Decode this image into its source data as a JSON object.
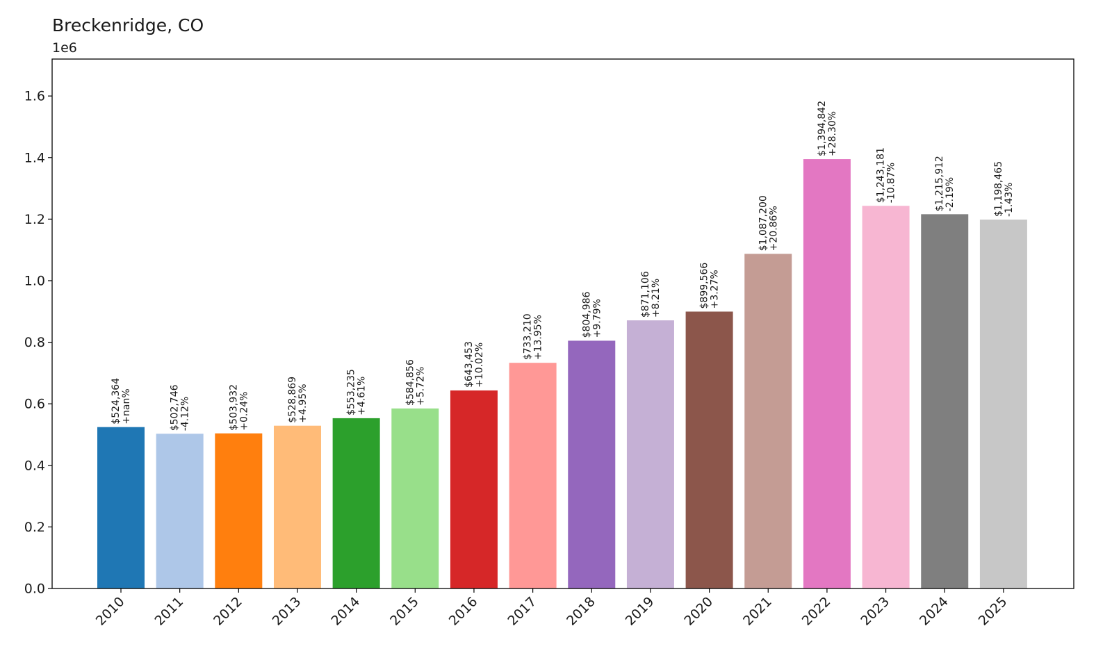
{
  "chart_data": {
    "type": "bar",
    "title": "Breckenridge, CO",
    "y_offset_label": "1e6",
    "xlabel": "",
    "ylabel": "",
    "ylim": [
      0,
      1720000
    ],
    "yticks": [
      0,
      200000,
      400000,
      600000,
      800000,
      1000000,
      1200000,
      1400000,
      1600000
    ],
    "ytick_labels": [
      "0.0",
      "0.2",
      "0.4",
      "0.6",
      "0.8",
      "1.0",
      "1.2",
      "1.4",
      "1.6"
    ],
    "grid": false,
    "categories": [
      "2010",
      "2011",
      "2012",
      "2013",
      "2014",
      "2015",
      "2016",
      "2017",
      "2018",
      "2019",
      "2020",
      "2021",
      "2022",
      "2023",
      "2024",
      "2025"
    ],
    "values": [
      524364,
      502746,
      503932,
      528869,
      553235,
      584856,
      643453,
      733210,
      804986,
      871106,
      899566,
      1087200,
      1394842,
      1243181,
      1215912,
      1198465
    ],
    "value_labels": [
      "$524,364",
      "$502,746",
      "$503,932",
      "$528,869",
      "$553,235",
      "$584,856",
      "$643,453",
      "$733,210",
      "$804,986",
      "$871,106",
      "$899,566",
      "$1,087,200",
      "$1,394,842",
      "$1,243,181",
      "$1,215,912",
      "$1,198,465"
    ],
    "change_labels": [
      "+nan%",
      "-4.12%",
      "+0.24%",
      "+4.95%",
      "+4.61%",
      "+5.72%",
      "+10.02%",
      "+13.95%",
      "+9.79%",
      "+8.21%",
      "+3.27%",
      "+20.86%",
      "+28.30%",
      "-10.87%",
      "-2.19%",
      "-1.43%"
    ],
    "colors": [
      "#1f77b4",
      "#aec7e8",
      "#ff7f0e",
      "#ffbb78",
      "#2ca02c",
      "#98df8a",
      "#d62728",
      "#ff9896",
      "#9467bd",
      "#c5b0d5",
      "#8c564b",
      "#c49c94",
      "#e377c2",
      "#f7b6d2",
      "#7f7f7f",
      "#c7c7c7"
    ]
  }
}
